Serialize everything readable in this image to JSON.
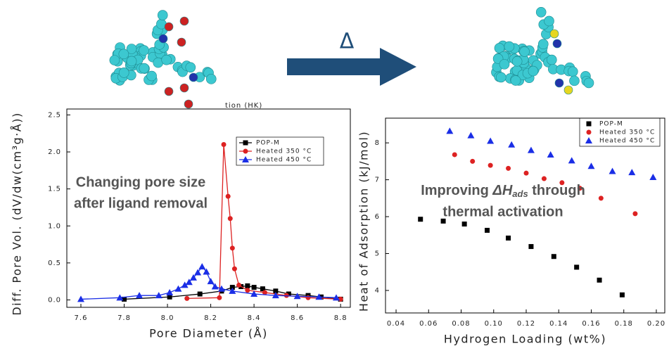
{
  "arrow_label": "Δ",
  "chart_data": [
    {
      "type": "line",
      "title": "tion (HK)",
      "x_label": "Pore Diameter (Å)",
      "y_label": "Diff. Pore Vol. (dV/dw(cm³g·Å))",
      "xlim": [
        7.535,
        8.845
      ],
      "ylim": [
        -0.1,
        2.58
      ],
      "xticks": [
        7.6,
        7.8,
        {
          "value": 8.0,
          "label": "8.0"
        },
        8.2,
        8.4,
        8.6,
        8.8
      ],
      "yticks": [
        {
          "value": 0,
          "label": "0.0"
        },
        0.5,
        {
          "value": 1,
          "label": "1.0"
        },
        1.5,
        {
          "value": 2,
          "label": "2.0"
        },
        2.5
      ],
      "annotation": [
        "Changing pore size",
        "after ligand removal"
      ],
      "series": [
        {
          "name": "POP-M",
          "color": "#000000",
          "marker": "square",
          "x": [
            7.8,
            8.01,
            8.15,
            8.25,
            8.3,
            8.34,
            8.37,
            8.4,
            8.44,
            8.5,
            8.56,
            8.65,
            8.71,
            8.8
          ],
          "values": [
            0.01,
            0.04,
            0.08,
            0.12,
            0.17,
            0.18,
            0.19,
            0.17,
            0.15,
            0.12,
            0.08,
            0.06,
            0.04,
            0.01
          ]
        },
        {
          "name": "Heated 350 °C",
          "color": "#dd2222",
          "marker": "circle",
          "x": [
            8.09,
            8.24,
            8.26,
            8.28,
            8.29,
            8.3,
            8.31,
            8.33,
            8.37,
            8.45,
            8.55,
            8.65,
            8.8
          ],
          "values": [
            0.02,
            0.03,
            2.1,
            1.4,
            1.1,
            0.7,
            0.42,
            0.2,
            0.13,
            0.1,
            0.06,
            0.03,
            0.01
          ]
        },
        {
          "name": "Heated 450 °C",
          "color": "#1a2ee6",
          "marker": "triangle",
          "x": [
            7.6,
            7.78,
            7.87,
            7.96,
            8.01,
            8.05,
            8.08,
            8.1,
            8.12,
            8.14,
            8.16,
            8.18,
            8.2,
            8.22,
            8.25,
            8.3,
            8.4,
            8.5,
            8.6,
            8.7,
            8.78
          ],
          "values": [
            0.01,
            0.03,
            0.06,
            0.06,
            0.1,
            0.15,
            0.2,
            0.24,
            0.3,
            0.37,
            0.45,
            0.38,
            0.25,
            0.18,
            0.15,
            0.12,
            0.08,
            0.06,
            0.05,
            0.04,
            0.03
          ]
        }
      ]
    },
    {
      "type": "scatter",
      "x_label": "Hydrogen Loading (wt%)",
      "y_label": "Heat of Adsorption (kJ/mol)",
      "xlim": [
        0.0335,
        0.2052
      ],
      "ylim": [
        3.39,
        8.67
      ],
      "xticks": [
        0.04,
        0.06,
        0.08,
        {
          "value": 0.1,
          "label": "0.10"
        },
        0.12,
        0.14,
        0.16,
        0.18,
        {
          "value": 0.2,
          "label": "0.20"
        }
      ],
      "yticks": [
        4,
        5,
        6,
        7,
        8
      ],
      "annotation": [
        "Improving ",
        "ΔH",
        "ads",
        " through",
        "thermal activation"
      ],
      "series": [
        {
          "name": "POP-M",
          "color": "#000000",
          "marker": "square",
          "x": [
            0.055,
            0.069,
            0.082,
            0.096,
            0.109,
            0.123,
            0.137,
            0.151,
            0.165,
            0.179
          ],
          "values": [
            5.93,
            5.88,
            5.8,
            5.63,
            5.42,
            5.19,
            4.92,
            4.63,
            4.28,
            3.88
          ]
        },
        {
          "name": "Heated 350 °C",
          "color": "#dd2222",
          "marker": "circle",
          "x": [
            0.076,
            0.087,
            0.098,
            0.109,
            0.12,
            0.131,
            0.142,
            0.153,
            0.166,
            0.187
          ],
          "values": [
            7.68,
            7.5,
            7.39,
            7.31,
            7.18,
            7.03,
            6.92,
            6.77,
            6.5,
            6.08
          ]
        },
        {
          "name": "Heated 450 °C",
          "color": "#1a2ee6",
          "marker": "triangle",
          "x": [
            0.073,
            0.086,
            0.098,
            0.111,
            0.123,
            0.135,
            0.148,
            0.16,
            0.173,
            0.185,
            0.198
          ],
          "values": [
            8.32,
            8.2,
            8.05,
            7.95,
            7.8,
            7.68,
            7.52,
            7.37,
            7.23,
            7.2,
            7.07
          ]
        }
      ]
    }
  ]
}
